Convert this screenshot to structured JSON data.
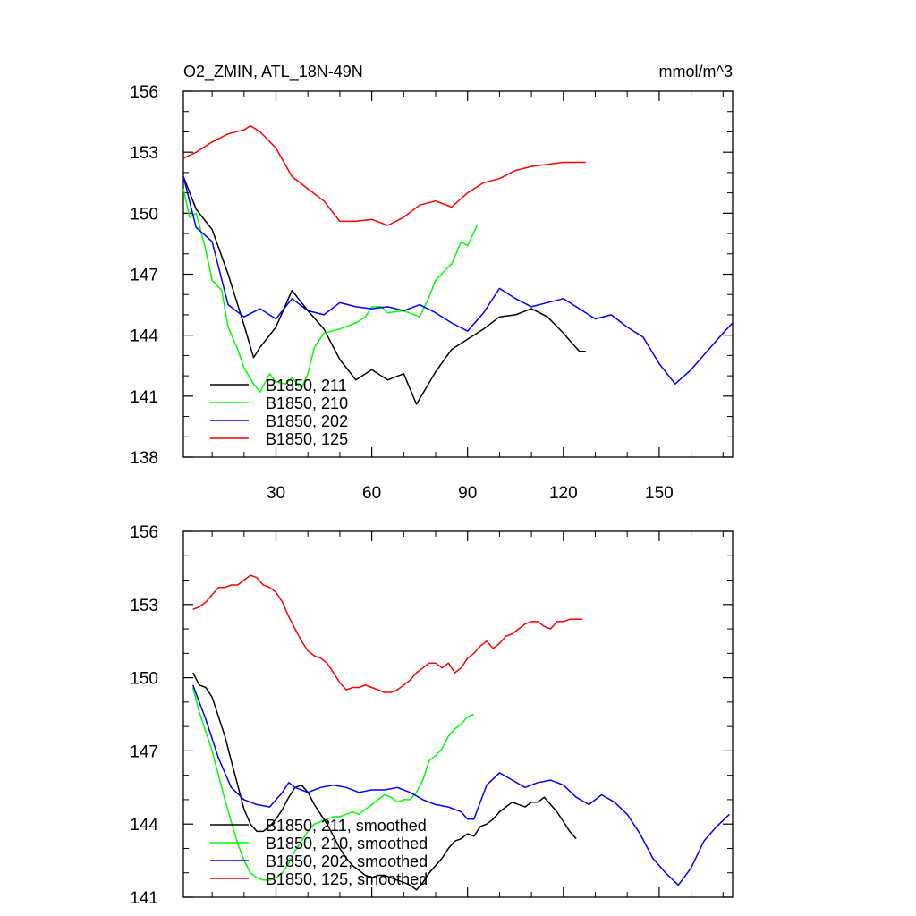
{
  "chart_data": [
    {
      "type": "line",
      "title": "O2_ZMIN, ATL_18N-49N",
      "units": "mmol/m^3",
      "xlim": [
        1,
        173
      ],
      "ylim": [
        138,
        156
      ],
      "xticks": [
        30,
        60,
        90,
        120,
        150
      ],
      "yticks": [
        138,
        141,
        144,
        147,
        150,
        153,
        156
      ],
      "legend_position": "bottom-left",
      "series": [
        {
          "name": "B1850, 211",
          "color": "#000000",
          "x": [
            1,
            5,
            10,
            15,
            20,
            23,
            25,
            30,
            35,
            40,
            45,
            50,
            55,
            60,
            65,
            70,
            74,
            80,
            85,
            90,
            95,
            100,
            105,
            110,
            115,
            120,
            125,
            127
          ],
          "y": [
            151.8,
            150.2,
            149.2,
            147.0,
            144.5,
            142.9,
            143.4,
            144.4,
            146.2,
            145.2,
            144.3,
            142.8,
            141.8,
            142.3,
            141.8,
            142.1,
            140.6,
            142.2,
            143.3,
            143.8,
            144.3,
            144.9,
            145.0,
            145.3,
            144.9,
            144.1,
            143.2,
            143.2
          ]
        },
        {
          "name": "B1850, 210",
          "color": "#00ff00",
          "x": [
            1,
            3,
            5,
            8,
            10,
            13,
            15,
            18,
            20,
            23,
            25,
            28,
            30,
            33,
            35,
            38,
            40,
            42,
            45,
            50,
            55,
            58,
            60,
            63,
            65,
            70,
            75,
            78,
            80,
            83,
            85,
            88,
            90,
            93
          ],
          "y": [
            151.2,
            149.8,
            150.0,
            148.2,
            146.7,
            146.2,
            144.4,
            143.3,
            142.4,
            141.6,
            141.2,
            142.1,
            141.7,
            141.6,
            141.9,
            141.4,
            142.1,
            143.4,
            144.1,
            144.3,
            144.6,
            144.9,
            145.4,
            145.4,
            145.1,
            145.2,
            144.9,
            145.9,
            146.7,
            147.2,
            147.5,
            148.6,
            148.4,
            149.4
          ]
        },
        {
          "name": "B1850, 202",
          "color": "#0000ff",
          "x": [
            1,
            5,
            10,
            15,
            20,
            25,
            30,
            35,
            40,
            45,
            50,
            55,
            60,
            65,
            70,
            75,
            80,
            85,
            90,
            95,
            100,
            105,
            110,
            115,
            120,
            125,
            130,
            135,
            140,
            145,
            150,
            155,
            160,
            165,
            170,
            173
          ],
          "y": [
            151.8,
            149.3,
            148.6,
            145.5,
            144.9,
            145.3,
            144.8,
            145.8,
            145.2,
            145.0,
            145.6,
            145.4,
            145.3,
            145.4,
            145.2,
            145.5,
            145.1,
            144.6,
            144.2,
            145.1,
            146.3,
            145.8,
            145.4,
            145.6,
            145.8,
            145.3,
            144.8,
            145.0,
            144.4,
            143.9,
            142.6,
            141.6,
            142.3,
            143.2,
            144.1,
            144.6
          ]
        },
        {
          "name": "B1850, 125",
          "color": "#ff0000",
          "x": [
            1,
            5,
            10,
            15,
            20,
            22,
            25,
            30,
            35,
            40,
            45,
            50,
            55,
            60,
            65,
            70,
            75,
            80,
            85,
            90,
            95,
            100,
            105,
            110,
            115,
            120,
            125,
            127
          ],
          "y": [
            152.7,
            153.0,
            153.5,
            153.9,
            154.1,
            154.3,
            154.0,
            153.2,
            151.8,
            151.2,
            150.6,
            149.6,
            149.6,
            149.7,
            149.4,
            149.8,
            150.4,
            150.6,
            150.3,
            151.0,
            151.5,
            151.7,
            152.1,
            152.3,
            152.4,
            152.5,
            152.5,
            152.5
          ]
        }
      ]
    },
    {
      "type": "line",
      "xlim": [
        1,
        173
      ],
      "ylim": [
        141,
        156
      ],
      "xticks": [
        30,
        60,
        90,
        120,
        150
      ],
      "yticks": [
        141,
        144,
        147,
        150,
        153,
        156
      ],
      "legend_position": "bottom-left",
      "series": [
        {
          "name": "B1850, 211, smoothed",
          "color": "#000000",
          "x": [
            4,
            6,
            8,
            10,
            12,
            14,
            16,
            18,
            20,
            22,
            24,
            26,
            28,
            30,
            32,
            34,
            36,
            38,
            40,
            42,
            44,
            46,
            48,
            50,
            52,
            54,
            56,
            58,
            60,
            62,
            64,
            66,
            68,
            70,
            72,
            74,
            76,
            78,
            80,
            82,
            84,
            86,
            88,
            90,
            92,
            94,
            96,
            98,
            100,
            102,
            104,
            106,
            108,
            110,
            112,
            114,
            116,
            118,
            120,
            122,
            124
          ],
          "y": [
            150.2,
            149.7,
            149.6,
            149.2,
            148.4,
            147.6,
            146.6,
            145.6,
            144.6,
            144.0,
            143.7,
            143.7,
            143.9,
            144.2,
            144.6,
            145.1,
            145.5,
            145.6,
            145.3,
            144.8,
            144.4,
            144.0,
            143.5,
            143.0,
            142.6,
            142.3,
            142.1,
            141.9,
            141.8,
            141.9,
            141.9,
            141.8,
            141.7,
            141.6,
            141.5,
            141.3,
            141.6,
            142.0,
            142.3,
            142.6,
            143.0,
            143.3,
            143.4,
            143.6,
            143.5,
            143.9,
            144.0,
            144.2,
            144.5,
            144.7,
            144.9,
            144.8,
            144.7,
            144.9,
            144.9,
            145.1,
            144.8,
            144.5,
            144.1,
            143.7,
            143.4
          ]
        },
        {
          "name": "B1850, 210, smoothed",
          "color": "#00ff00",
          "x": [
            4,
            6,
            8,
            10,
            12,
            14,
            16,
            18,
            20,
            22,
            24,
            26,
            28,
            30,
            32,
            34,
            36,
            38,
            40,
            42,
            44,
            46,
            48,
            50,
            52,
            54,
            56,
            58,
            60,
            62,
            64,
            66,
            68,
            70,
            72,
            74,
            76,
            78,
            80,
            82,
            84,
            86,
            88,
            90,
            92
          ],
          "y": [
            149.6,
            148.6,
            147.8,
            147.0,
            146.0,
            145.0,
            144.1,
            143.2,
            142.5,
            142.0,
            141.8,
            141.7,
            141.7,
            141.8,
            142.0,
            142.4,
            142.9,
            143.3,
            143.7,
            144.0,
            144.1,
            144.2,
            144.3,
            144.3,
            144.4,
            144.5,
            144.4,
            144.6,
            144.8,
            145.0,
            145.2,
            145.1,
            144.9,
            145.0,
            145.0,
            145.3,
            145.8,
            146.6,
            146.8,
            147.1,
            147.6,
            147.9,
            148.1,
            148.4,
            148.5
          ]
        },
        {
          "name": "B1850, 202, smoothed",
          "color": "#0000ff",
          "x": [
            4,
            8,
            12,
            16,
            20,
            24,
            28,
            32,
            34,
            36,
            40,
            44,
            48,
            52,
            56,
            60,
            64,
            68,
            72,
            76,
            80,
            84,
            88,
            90,
            92,
            96,
            100,
            104,
            108,
            112,
            116,
            120,
            124,
            128,
            132,
            136,
            140,
            144,
            148,
            152,
            156,
            160,
            164,
            168,
            172
          ],
          "y": [
            149.7,
            148.3,
            146.7,
            145.5,
            145.0,
            144.8,
            144.7,
            145.3,
            145.7,
            145.5,
            145.3,
            145.5,
            145.6,
            145.5,
            145.3,
            145.4,
            145.4,
            145.5,
            145.3,
            145.0,
            144.8,
            144.7,
            144.5,
            144.2,
            144.2,
            145.6,
            146.1,
            145.8,
            145.5,
            145.7,
            145.8,
            145.6,
            145.1,
            144.8,
            145.2,
            144.9,
            144.4,
            143.6,
            142.6,
            142.0,
            141.5,
            142.2,
            143.3,
            143.9,
            144.4
          ]
        },
        {
          "name": "B1850, 125, smoothed",
          "color": "#ff0000",
          "x": [
            4,
            6,
            8,
            10,
            12,
            14,
            16,
            18,
            20,
            22,
            24,
            26,
            28,
            30,
            32,
            34,
            36,
            38,
            40,
            42,
            44,
            46,
            48,
            50,
            52,
            54,
            56,
            58,
            60,
            62,
            64,
            66,
            68,
            70,
            72,
            74,
            76,
            78,
            80,
            82,
            84,
            86,
            88,
            90,
            92,
            94,
            96,
            98,
            100,
            102,
            104,
            106,
            108,
            110,
            112,
            114,
            116,
            118,
            120,
            122,
            124,
            126
          ],
          "y": [
            152.8,
            152.9,
            153.1,
            153.4,
            153.7,
            153.7,
            153.8,
            153.8,
            154.0,
            154.2,
            154.1,
            153.8,
            153.7,
            153.5,
            153.1,
            152.5,
            152.0,
            151.5,
            151.1,
            150.9,
            150.8,
            150.6,
            150.2,
            149.8,
            149.5,
            149.6,
            149.6,
            149.7,
            149.6,
            149.5,
            149.4,
            149.4,
            149.5,
            149.7,
            149.9,
            150.2,
            150.4,
            150.6,
            150.6,
            150.4,
            150.6,
            150.2,
            150.4,
            150.8,
            151.0,
            151.3,
            151.5,
            151.2,
            151.4,
            151.7,
            151.8,
            152.0,
            152.2,
            152.3,
            152.3,
            152.1,
            152.0,
            152.3,
            152.3,
            152.4,
            152.4,
            152.4
          ]
        }
      ]
    }
  ]
}
